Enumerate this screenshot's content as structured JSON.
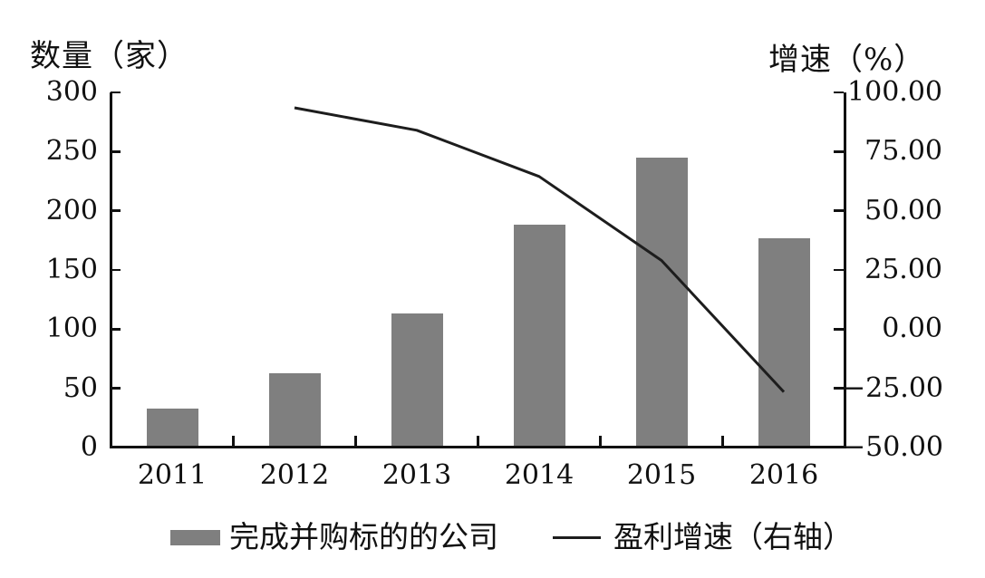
{
  "chart_data": {
    "type": "bar+line",
    "title": "",
    "categories": [
      "2011",
      "2012",
      "2013",
      "2014",
      "2015",
      "2016"
    ],
    "series": [
      {
        "name": "完成并购标的的公司",
        "type": "bar",
        "axis": "left",
        "values": [
          33,
          63,
          113,
          188,
          245,
          177
        ]
      },
      {
        "name": "盈利增速（右轴）",
        "type": "line",
        "axis": "right",
        "values": [
          null,
          93.5,
          84,
          64.5,
          29,
          -26.5
        ]
      }
    ],
    "left_axis": {
      "label": "数量（家）",
      "min": 0,
      "max": 300,
      "tick_labels": [
        "300",
        "250",
        "200",
        "150",
        "100",
        "50",
        "0"
      ]
    },
    "right_axis": {
      "label": "增速（%）",
      "min": -50,
      "max": 100,
      "tick_labels": [
        "100.00",
        "75.00",
        "50.00",
        "25.00",
        "0.00",
        "−25.00",
        "−50.00"
      ]
    },
    "legend_position": "bottom",
    "grid": false
  },
  "colors": {
    "bar": "#7f7f7f",
    "line": "#1d1d1d",
    "axis": "#111111",
    "background": "#ffffff"
  }
}
